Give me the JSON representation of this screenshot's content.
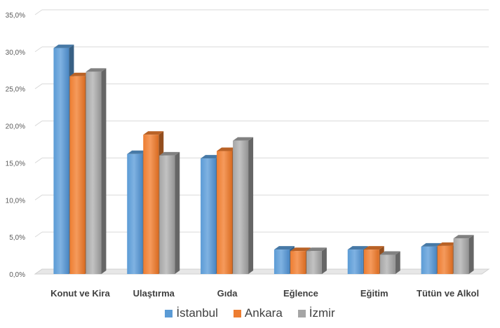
{
  "chart_data": {
    "type": "bar",
    "categories": [
      "Konut ve Kira",
      "Ulaştırma",
      "Gıda",
      "Eğlence",
      "Eğitim",
      "Tütün ve Alkol"
    ],
    "series": [
      {
        "name": "İstanbul",
        "color": "#5b9bd5",
        "values": [
          30.5,
          16.2,
          15.6,
          3.3,
          3.3,
          3.7
        ]
      },
      {
        "name": "Ankara",
        "color": "#ed7d31",
        "values": [
          26.7,
          18.8,
          16.6,
          3.1,
          3.3,
          3.8
        ]
      },
      {
        "name": "İzmir",
        "color": "#a5a5a5",
        "values": [
          27.3,
          16.0,
          18.0,
          3.1,
          2.6,
          4.8
        ]
      }
    ],
    "ylim": [
      0,
      35
    ],
    "yticks": [
      "0,0%",
      "5,0%",
      "10,0%",
      "15,0%",
      "20,0%",
      "25,0%",
      "30,0%",
      "35,0%"
    ],
    "grid": true,
    "legend": "bottom",
    "style": "3d-clustered-column"
  }
}
